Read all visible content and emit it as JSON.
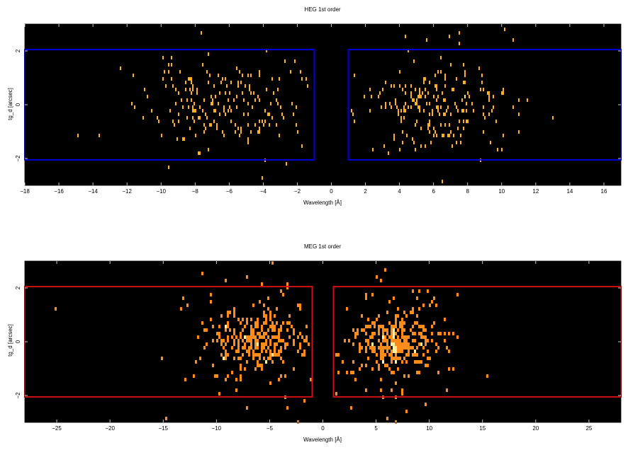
{
  "chart_data": [
    {
      "type": "heatmap",
      "title": "HEG 1st order",
      "xlabel": "Wavelength [Å]",
      "ylabel": "tg_d [arcsec]",
      "xlim": [
        -18,
        17
      ],
      "ylim": [
        -3,
        3
      ],
      "xticks": [
        -18,
        -16,
        -14,
        -12,
        -10,
        -8,
        -6,
        -4,
        -2,
        0,
        2,
        4,
        6,
        8,
        10,
        12,
        14,
        16
      ],
      "xtick_labels": [
        "−18",
        "−16",
        "−14",
        "−12",
        "−10",
        "−8",
        "−6",
        "−4",
        "−2",
        "0",
        "2",
        "4",
        "6",
        "8",
        "10",
        "12",
        "14",
        "16"
      ],
      "yticks": [
        -2,
        0,
        2
      ],
      "ytick_labels": [
        "−2",
        "0",
        "2"
      ],
      "background_color": "#000000",
      "count_color": "#ffb020",
      "peak_color": "#ffe070",
      "regions": [
        {
          "xmin": -18,
          "xmax": -1,
          "ymin": -2.05,
          "ymax": 2.05,
          "color": "#0000dd"
        },
        {
          "xmin": 1,
          "xmax": 17,
          "ymin": -2.05,
          "ymax": 2.05,
          "color": "#0000dd"
        }
      ],
      "event_clusters": [
        {
          "xc": -6.5,
          "xsd": 2.2,
          "ysd": 0.8,
          "n": 175,
          "xmin": -17.5,
          "xmax": -1.2
        },
        {
          "xc": -3.5,
          "xsd": 6.5,
          "ysd": 1.3,
          "n": 55,
          "xmin": -17.5,
          "xmax": -1.2
        },
        {
          "xc": 6.2,
          "xsd": 1.9,
          "ysd": 0.8,
          "n": 175,
          "xmin": 1.2,
          "xmax": 16.5
        },
        {
          "xc": 5.5,
          "xsd": 3.8,
          "ysd": 1.3,
          "n": 55,
          "xmin": 1.2,
          "xmax": 16.5
        }
      ],
      "seed": 11
    },
    {
      "type": "heatmap",
      "title": "MEG 1st order",
      "xlabel": "Wavelength [Å]",
      "ylabel": "tg_d [arcsec]",
      "xlim": [
        -28,
        28
      ],
      "ylim": [
        -3,
        3
      ],
      "xticks": [
        -25,
        -20,
        -15,
        -10,
        -5,
        0,
        5,
        10,
        15,
        20,
        25
      ],
      "xtick_labels": [
        "−25",
        "−20",
        "−15",
        "−10",
        "−5",
        "0",
        "5",
        "10",
        "15",
        "20",
        "25"
      ],
      "yticks": [
        -2,
        0,
        2
      ],
      "ytick_labels": [
        "−2",
        "0",
        "2"
      ],
      "background_color": "#000000",
      "count_color": "#ff8c1a",
      "peak_color": "#fff0a0",
      "regions": [
        {
          "xmin": -28,
          "xmax": -1,
          "ymin": -2.05,
          "ymax": 2.05,
          "color": "#d01010"
        },
        {
          "xmin": 1,
          "xmax": 28,
          "ymin": -2.05,
          "ymax": 2.05,
          "color": "#d01010"
        }
      ],
      "event_clusters": [
        {
          "xc": -6.5,
          "xsd": 2.2,
          "ysd": 0.55,
          "n": 230,
          "xmin": -27.5,
          "xmax": -1.2
        },
        {
          "xc": -6.5,
          "xsd": 3.0,
          "ysd": 1.5,
          "n": 90,
          "xmin": -27.5,
          "xmax": -1.2
        },
        {
          "xc": 6.6,
          "xsd": 2.0,
          "ysd": 0.5,
          "n": 240,
          "xmin": 1.2,
          "xmax": 27.5
        },
        {
          "xc": 6.6,
          "xsd": 2.8,
          "ysd": 1.5,
          "n": 90,
          "xmin": 1.2,
          "xmax": 27.5
        },
        {
          "xc": 0,
          "xsd": 14,
          "ysd": 1.4,
          "n": 25,
          "xmin": -27.5,
          "xmax": 27.5
        },
        {
          "xc": 6.7,
          "xsd": 0.12,
          "ysd": 0.35,
          "n": 45,
          "xmin": 6.2,
          "xmax": 7.2
        }
      ],
      "seed": 23
    }
  ]
}
